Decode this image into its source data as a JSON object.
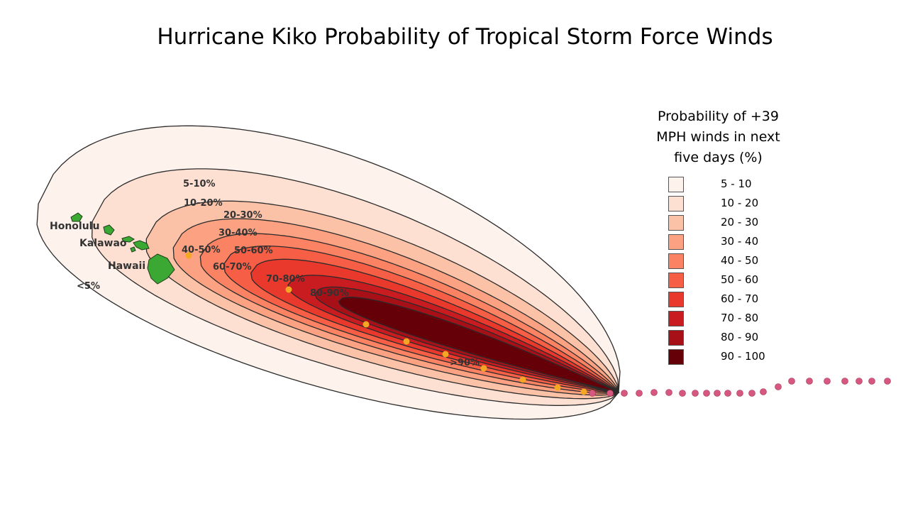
{
  "title": "Hurricane Kiko Probability of Tropical Storm Force Winds",
  "legend": {
    "title_lines": [
      "Probability of +39",
      "MPH winds in next",
      "five days (%)"
    ],
    "items": [
      {
        "label": "5 - 10",
        "color": "#fef2ec"
      },
      {
        "label": "10 - 20",
        "color": "#fde0d2"
      },
      {
        "label": "20 - 30",
        "color": "#fcc2a8"
      },
      {
        "label": "30 - 40",
        "color": "#fca282"
      },
      {
        "label": "40 - 50",
        "color": "#fb8262"
      },
      {
        "label": "50 - 60",
        "color": "#f65f45"
      },
      {
        "label": "60 - 70",
        "color": "#e8392c"
      },
      {
        "label": "70 - 80",
        "color": "#c91c20"
      },
      {
        "label": "80 - 90",
        "color": "#a81018"
      },
      {
        "label": "90 - 100",
        "color": "#650009"
      }
    ]
  },
  "map": {
    "contour_labels": [
      "<5%",
      "5-10%",
      "10-20%",
      "20-30%",
      "30-40%",
      "40-50%",
      "50-60%",
      "60-70%",
      "70-80%",
      "80-90%",
      ">90%"
    ],
    "places": [
      "Honolulu",
      "Kalawao",
      "Hawaii"
    ],
    "colors": {
      "island": "#3aa832",
      "forecast_point": "#f5a623",
      "past_track_point": "#d6577f",
      "contour_line": "#2b2b2b"
    }
  }
}
